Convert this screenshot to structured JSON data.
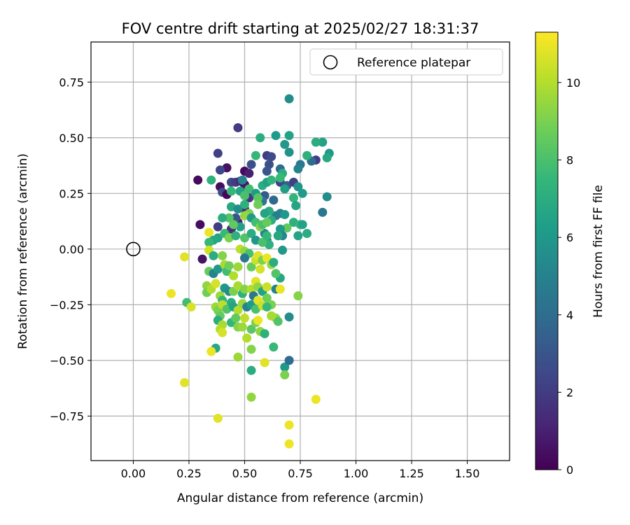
{
  "chart_data": {
    "type": "scatter",
    "title": "FOV centre drift starting at 2025/02/27 18:31:37",
    "xlabel": "Angular distance from reference (arcmin)",
    "ylabel": "Rotation from reference (arcmin)",
    "xlim": [
      -0.19,
      1.69
    ],
    "ylim": [
      -0.95,
      0.93
    ],
    "xticks": [
      0.0,
      0.25,
      0.5,
      0.75,
      1.0,
      1.25,
      1.5
    ],
    "xtick_labels": [
      "0.00",
      "0.25",
      "0.50",
      "0.75",
      "1.00",
      "1.25",
      "1.50"
    ],
    "yticks": [
      -0.75,
      -0.5,
      -0.25,
      0.0,
      0.25,
      0.5,
      0.75
    ],
    "ytick_labels": [
      "−0.75",
      "−0.50",
      "−0.25",
      "0.00",
      "0.25",
      "0.50",
      "0.75"
    ],
    "grid": true,
    "legend": {
      "placement": "top-right",
      "entries": [
        "Reference platepar"
      ]
    },
    "reference_point": {
      "name": "Reference platepar",
      "x": 0.0,
      "y": 0.0
    },
    "colorbar": {
      "label": "Hours from first FF file",
      "colormap": "viridis",
      "min": 0,
      "max": 11.3,
      "ticks": [
        0,
        2,
        4,
        6,
        8,
        10
      ],
      "tick_labels": [
        "0",
        "2",
        "4",
        "6",
        "8",
        "10"
      ]
    },
    "colormap_stops": [
      "#440154",
      "#482878",
      "#3e4989",
      "#31688e",
      "#26828e",
      "#1f9e89",
      "#35b779",
      "#6ece58",
      "#b5de2b",
      "#fde725"
    ],
    "points": [
      {
        "x": 0.47,
        "y": 0.545,
        "h": 2.0
      },
      {
        "x": 0.38,
        "y": 0.43,
        "h": 2.2
      },
      {
        "x": 0.42,
        "y": 0.365,
        "h": 0.5
      },
      {
        "x": 0.39,
        "y": 0.355,
        "h": 2.4
      },
      {
        "x": 0.29,
        "y": 0.31,
        "h": 0.3
      },
      {
        "x": 0.44,
        "y": 0.3,
        "h": 2.5
      },
      {
        "x": 0.46,
        "y": 0.3,
        "h": 2.0
      },
      {
        "x": 0.39,
        "y": 0.28,
        "h": 0.4
      },
      {
        "x": 0.4,
        "y": 0.255,
        "h": 2.6
      },
      {
        "x": 0.42,
        "y": 0.245,
        "h": 0.2
      },
      {
        "x": 0.5,
        "y": 0.35,
        "h": 0.3
      },
      {
        "x": 0.52,
        "y": 0.34,
        "h": 1.0
      },
      {
        "x": 0.53,
        "y": 0.38,
        "h": 2.8
      },
      {
        "x": 0.48,
        "y": 0.305,
        "h": 1.5
      },
      {
        "x": 0.5,
        "y": 0.29,
        "h": 0.6
      },
      {
        "x": 0.3,
        "y": 0.11,
        "h": 0.4
      },
      {
        "x": 0.38,
        "y": 0.1,
        "h": 2.0
      },
      {
        "x": 0.44,
        "y": 0.09,
        "h": 1.5
      },
      {
        "x": 0.47,
        "y": 0.12,
        "h": 1.0
      },
      {
        "x": 0.31,
        "y": -0.045,
        "h": 0.6
      },
      {
        "x": 0.52,
        "y": 0.23,
        "h": 1.8
      },
      {
        "x": 0.5,
        "y": 0.18,
        "h": 1.2
      },
      {
        "x": 0.46,
        "y": 0.14,
        "h": 3.0
      },
      {
        "x": 0.6,
        "y": 0.42,
        "h": 2.0
      },
      {
        "x": 0.62,
        "y": 0.415,
        "h": 2.6
      },
      {
        "x": 0.61,
        "y": 0.38,
        "h": 2.8
      },
      {
        "x": 0.66,
        "y": 0.36,
        "h": 4.0
      },
      {
        "x": 0.6,
        "y": 0.35,
        "h": 3.0
      },
      {
        "x": 0.66,
        "y": 0.3,
        "h": 2.4
      },
      {
        "x": 0.69,
        "y": 0.285,
        "h": 3.5
      },
      {
        "x": 0.72,
        "y": 0.3,
        "h": 2.2
      },
      {
        "x": 0.59,
        "y": 0.24,
        "h": 3.2
      },
      {
        "x": 0.58,
        "y": 0.215,
        "h": 4.5
      },
      {
        "x": 0.63,
        "y": 0.22,
        "h": 3.8
      },
      {
        "x": 0.82,
        "y": 0.4,
        "h": 2.0
      },
      {
        "x": 0.8,
        "y": 0.395,
        "h": 4.0
      },
      {
        "x": 0.75,
        "y": 0.38,
        "h": 4.5
      },
      {
        "x": 0.74,
        "y": 0.36,
        "h": 5.0
      },
      {
        "x": 0.7,
        "y": 0.675,
        "h": 5.5
      },
      {
        "x": 0.7,
        "y": 0.51,
        "h": 6.5
      },
      {
        "x": 0.64,
        "y": 0.51,
        "h": 6.2
      },
      {
        "x": 0.57,
        "y": 0.5,
        "h": 7.0
      },
      {
        "x": 0.68,
        "y": 0.47,
        "h": 6.0
      },
      {
        "x": 0.7,
        "y": 0.435,
        "h": 5.8
      },
      {
        "x": 0.78,
        "y": 0.42,
        "h": 7.2
      },
      {
        "x": 0.85,
        "y": 0.48,
        "h": 6.5
      },
      {
        "x": 0.82,
        "y": 0.48,
        "h": 7.0
      },
      {
        "x": 0.88,
        "y": 0.43,
        "h": 6.0
      },
      {
        "x": 0.87,
        "y": 0.41,
        "h": 6.8
      },
      {
        "x": 0.55,
        "y": 0.42,
        "h": 7.5
      },
      {
        "x": 0.67,
        "y": 0.34,
        "h": 7.0
      },
      {
        "x": 0.66,
        "y": 0.32,
        "h": 7.6
      },
      {
        "x": 0.68,
        "y": 0.27,
        "h": 6.4
      },
      {
        "x": 0.74,
        "y": 0.28,
        "h": 5.8
      },
      {
        "x": 0.76,
        "y": 0.25,
        "h": 6.2
      },
      {
        "x": 0.72,
        "y": 0.23,
        "h": 7.4
      },
      {
        "x": 0.73,
        "y": 0.195,
        "h": 6.6
      },
      {
        "x": 0.87,
        "y": 0.235,
        "h": 5.5
      },
      {
        "x": 0.85,
        "y": 0.165,
        "h": 4.5
      },
      {
        "x": 0.66,
        "y": 0.16,
        "h": 5.0
      },
      {
        "x": 0.68,
        "y": 0.155,
        "h": 6.0
      },
      {
        "x": 0.64,
        "y": 0.15,
        "h": 4.8
      },
      {
        "x": 0.62,
        "y": 0.13,
        "h": 7.0
      },
      {
        "x": 0.72,
        "y": 0.12,
        "h": 7.2
      },
      {
        "x": 0.75,
        "y": 0.11,
        "h": 7.5
      },
      {
        "x": 0.76,
        "y": 0.11,
        "h": 6.5
      },
      {
        "x": 0.69,
        "y": 0.095,
        "h": 8.5
      },
      {
        "x": 0.66,
        "y": 0.09,
        "h": 6.2
      },
      {
        "x": 0.78,
        "y": 0.07,
        "h": 7.0
      },
      {
        "x": 0.74,
        "y": 0.06,
        "h": 6.6
      },
      {
        "x": 0.67,
        "y": 0.06,
        "h": 5.2
      },
      {
        "x": 0.65,
        "y": 0.06,
        "h": 6.8
      },
      {
        "x": 0.59,
        "y": 0.07,
        "h": 5.0
      },
      {
        "x": 0.6,
        "y": 0.04,
        "h": 4.5
      },
      {
        "x": 0.61,
        "y": 0.02,
        "h": 7.2
      },
      {
        "x": 0.67,
        "y": -0.005,
        "h": 6.0
      },
      {
        "x": 0.35,
        "y": 0.31,
        "h": 7.2
      },
      {
        "x": 0.44,
        "y": 0.26,
        "h": 7.5
      },
      {
        "x": 0.48,
        "y": 0.26,
        "h": 6.5
      },
      {
        "x": 0.5,
        "y": 0.24,
        "h": 8.0
      },
      {
        "x": 0.52,
        "y": 0.27,
        "h": 7.8
      },
      {
        "x": 0.55,
        "y": 0.25,
        "h": 6.2
      },
      {
        "x": 0.56,
        "y": 0.23,
        "h": 8.4
      },
      {
        "x": 0.58,
        "y": 0.285,
        "h": 7.0
      },
      {
        "x": 0.6,
        "y": 0.3,
        "h": 6.5
      },
      {
        "x": 0.62,
        "y": 0.31,
        "h": 7.4
      },
      {
        "x": 0.49,
        "y": 0.31,
        "h": 5.0
      },
      {
        "x": 0.44,
        "y": 0.19,
        "h": 6.8
      },
      {
        "x": 0.47,
        "y": 0.18,
        "h": 5.5
      },
      {
        "x": 0.5,
        "y": 0.2,
        "h": 7.2
      },
      {
        "x": 0.52,
        "y": 0.16,
        "h": 9.0
      },
      {
        "x": 0.5,
        "y": 0.15,
        "h": 9.5
      },
      {
        "x": 0.53,
        "y": 0.14,
        "h": 6.0
      },
      {
        "x": 0.55,
        "y": 0.12,
        "h": 7.8
      },
      {
        "x": 0.57,
        "y": 0.1,
        "h": 9.2
      },
      {
        "x": 0.58,
        "y": 0.11,
        "h": 8.0
      },
      {
        "x": 0.6,
        "y": 0.12,
        "h": 8.6
      },
      {
        "x": 0.61,
        "y": 0.17,
        "h": 7.0
      },
      {
        "x": 0.56,
        "y": 0.2,
        "h": 8.8
      },
      {
        "x": 0.59,
        "y": 0.16,
        "h": 6.6
      },
      {
        "x": 0.48,
        "y": 0.1,
        "h": 6.4
      },
      {
        "x": 0.45,
        "y": 0.11,
        "h": 8.5
      },
      {
        "x": 0.43,
        "y": 0.14,
        "h": 8.2
      },
      {
        "x": 0.4,
        "y": 0.14,
        "h": 7.0
      },
      {
        "x": 0.38,
        "y": 0.05,
        "h": 6.6
      },
      {
        "x": 0.41,
        "y": 0.07,
        "h": 7.6
      },
      {
        "x": 0.43,
        "y": 0.05,
        "h": 9.0
      },
      {
        "x": 0.46,
        "y": 0.06,
        "h": 7.2
      },
      {
        "x": 0.5,
        "y": 0.05,
        "h": 8.2
      },
      {
        "x": 0.53,
        "y": 0.07,
        "h": 7.0
      },
      {
        "x": 0.55,
        "y": 0.04,
        "h": 6.0
      },
      {
        "x": 0.58,
        "y": 0.03,
        "h": 8.0
      },
      {
        "x": 0.6,
        "y": 0.06,
        "h": 7.5
      },
      {
        "x": 0.36,
        "y": 0.04,
        "h": 6.8
      },
      {
        "x": 0.34,
        "y": 0.03,
        "h": 7.5
      },
      {
        "x": 0.34,
        "y": 0.075,
        "h": 11.0
      },
      {
        "x": 0.34,
        "y": -0.005,
        "h": 10.5
      },
      {
        "x": 0.36,
        "y": -0.03,
        "h": 7.0
      },
      {
        "x": 0.34,
        "y": -0.1,
        "h": 8.6
      },
      {
        "x": 0.36,
        "y": -0.11,
        "h": 5.0
      },
      {
        "x": 0.38,
        "y": -0.09,
        "h": 6.0
      },
      {
        "x": 0.4,
        "y": -0.03,
        "h": 9.2
      },
      {
        "x": 0.41,
        "y": -0.07,
        "h": 9.8
      },
      {
        "x": 0.42,
        "y": -0.1,
        "h": 7.8
      },
      {
        "x": 0.43,
        "y": -0.075,
        "h": 8.8
      },
      {
        "x": 0.45,
        "y": -0.12,
        "h": 10.0
      },
      {
        "x": 0.47,
        "y": -0.08,
        "h": 9.6
      },
      {
        "x": 0.48,
        "y": 0.0,
        "h": 10.2
      },
      {
        "x": 0.5,
        "y": -0.01,
        "h": 9.4
      },
      {
        "x": 0.52,
        "y": -0.02,
        "h": 8.0
      },
      {
        "x": 0.5,
        "y": -0.04,
        "h": 4.5
      },
      {
        "x": 0.53,
        "y": -0.08,
        "h": 8.6
      },
      {
        "x": 0.55,
        "y": -0.05,
        "h": 10.4
      },
      {
        "x": 0.56,
        "y": -0.03,
        "h": 10.8
      },
      {
        "x": 0.58,
        "y": -0.05,
        "h": 9.0
      },
      {
        "x": 0.57,
        "y": -0.09,
        "h": 10.6
      },
      {
        "x": 0.6,
        "y": -0.04,
        "h": 11.0
      },
      {
        "x": 0.62,
        "y": -0.07,
        "h": 9.6
      },
      {
        "x": 0.63,
        "y": -0.06,
        "h": 7.0
      },
      {
        "x": 0.66,
        "y": -0.13,
        "h": 6.8
      },
      {
        "x": 0.64,
        "y": -0.11,
        "h": 8.2
      },
      {
        "x": 0.33,
        "y": -0.165,
        "h": 9.4
      },
      {
        "x": 0.33,
        "y": -0.195,
        "h": 8.8
      },
      {
        "x": 0.35,
        "y": -0.18,
        "h": 10.0
      },
      {
        "x": 0.37,
        "y": -0.155,
        "h": 10.6
      },
      {
        "x": 0.39,
        "y": -0.21,
        "h": 9.6
      },
      {
        "x": 0.4,
        "y": -0.23,
        "h": 7.5
      },
      {
        "x": 0.41,
        "y": -0.175,
        "h": 6.0
      },
      {
        "x": 0.43,
        "y": -0.19,
        "h": 5.5
      },
      {
        "x": 0.45,
        "y": -0.19,
        "h": 9.0
      },
      {
        "x": 0.47,
        "y": -0.165,
        "h": 9.8
      },
      {
        "x": 0.49,
        "y": -0.2,
        "h": 7.2
      },
      {
        "x": 0.5,
        "y": -0.18,
        "h": 9.2
      },
      {
        "x": 0.53,
        "y": -0.18,
        "h": 10.0
      },
      {
        "x": 0.54,
        "y": -0.21,
        "h": 4.5
      },
      {
        "x": 0.55,
        "y": -0.145,
        "h": 10.8
      },
      {
        "x": 0.56,
        "y": -0.17,
        "h": 9.4
      },
      {
        "x": 0.58,
        "y": -0.19,
        "h": 6.5
      },
      {
        "x": 0.6,
        "y": -0.17,
        "h": 10.4
      },
      {
        "x": 0.6,
        "y": -0.22,
        "h": 8.8
      },
      {
        "x": 0.62,
        "y": -0.25,
        "h": 9.0
      },
      {
        "x": 0.64,
        "y": -0.18,
        "h": 5.0
      },
      {
        "x": 0.66,
        "y": -0.18,
        "h": 11.0
      },
      {
        "x": 0.74,
        "y": -0.21,
        "h": 9.2
      },
      {
        "x": 0.37,
        "y": -0.26,
        "h": 9.6
      },
      {
        "x": 0.38,
        "y": -0.275,
        "h": 9.0
      },
      {
        "x": 0.39,
        "y": -0.3,
        "h": 8.6
      },
      {
        "x": 0.4,
        "y": -0.25,
        "h": 10.2
      },
      {
        "x": 0.42,
        "y": -0.27,
        "h": 8.2
      },
      {
        "x": 0.44,
        "y": -0.24,
        "h": 7.0
      },
      {
        "x": 0.45,
        "y": -0.26,
        "h": 6.6
      },
      {
        "x": 0.47,
        "y": -0.275,
        "h": 10.0
      },
      {
        "x": 0.49,
        "y": -0.245,
        "h": 9.6
      },
      {
        "x": 0.51,
        "y": -0.26,
        "h": 5.0
      },
      {
        "x": 0.53,
        "y": -0.25,
        "h": 6.2
      },
      {
        "x": 0.55,
        "y": -0.27,
        "h": 8.0
      },
      {
        "x": 0.56,
        "y": -0.23,
        "h": 10.8
      },
      {
        "x": 0.58,
        "y": -0.255,
        "h": 10.4
      },
      {
        "x": 0.6,
        "y": -0.26,
        "h": 7.6
      },
      {
        "x": 0.62,
        "y": -0.3,
        "h": 10.6
      },
      {
        "x": 0.64,
        "y": -0.31,
        "h": 9.4
      },
      {
        "x": 0.65,
        "y": -0.325,
        "h": 8.2
      },
      {
        "x": 0.7,
        "y": -0.305,
        "h": 5.5
      },
      {
        "x": 0.38,
        "y": -0.32,
        "h": 7.0
      },
      {
        "x": 0.4,
        "y": -0.34,
        "h": 9.8
      },
      {
        "x": 0.39,
        "y": -0.36,
        "h": 10.0
      },
      {
        "x": 0.4,
        "y": -0.375,
        "h": 10.6
      },
      {
        "x": 0.44,
        "y": -0.33,
        "h": 7.5
      },
      {
        "x": 0.46,
        "y": -0.31,
        "h": 8.5
      },
      {
        "x": 0.47,
        "y": -0.35,
        "h": 9.2
      },
      {
        "x": 0.49,
        "y": -0.35,
        "h": 9.6
      },
      {
        "x": 0.5,
        "y": -0.31,
        "h": 10.2
      },
      {
        "x": 0.51,
        "y": -0.4,
        "h": 10.0
      },
      {
        "x": 0.53,
        "y": -0.36,
        "h": 8.4
      },
      {
        "x": 0.55,
        "y": -0.33,
        "h": 9.0
      },
      {
        "x": 0.56,
        "y": -0.32,
        "h": 11.0
      },
      {
        "x": 0.57,
        "y": -0.37,
        "h": 9.4
      },
      {
        "x": 0.59,
        "y": -0.38,
        "h": 7.2
      },
      {
        "x": 0.62,
        "y": -0.3,
        "h": 9.8
      },
      {
        "x": 0.37,
        "y": -0.445,
        "h": 6.8
      },
      {
        "x": 0.35,
        "y": -0.46,
        "h": 11.0
      },
      {
        "x": 0.47,
        "y": -0.485,
        "h": 9.6
      },
      {
        "x": 0.53,
        "y": -0.45,
        "h": 9.2
      },
      {
        "x": 0.53,
        "y": -0.545,
        "h": 7.0
      },
      {
        "x": 0.59,
        "y": -0.51,
        "h": 10.8
      },
      {
        "x": 0.63,
        "y": -0.44,
        "h": 7.6
      },
      {
        "x": 0.68,
        "y": -0.53,
        "h": 6.0
      },
      {
        "x": 0.7,
        "y": -0.5,
        "h": 4.0
      },
      {
        "x": 0.68,
        "y": -0.565,
        "h": 9.0
      },
      {
        "x": 0.23,
        "y": -0.035,
        "h": 10.8
      },
      {
        "x": 0.17,
        "y": -0.2,
        "h": 11.0
      },
      {
        "x": 0.24,
        "y": -0.24,
        "h": 7.8
      },
      {
        "x": 0.26,
        "y": -0.26,
        "h": 10.6
      },
      {
        "x": 0.23,
        "y": -0.6,
        "h": 10.8
      },
      {
        "x": 0.53,
        "y": -0.665,
        "h": 9.4
      },
      {
        "x": 0.82,
        "y": -0.675,
        "h": 11.0
      },
      {
        "x": 0.38,
        "y": -0.76,
        "h": 10.8
      },
      {
        "x": 0.7,
        "y": -0.79,
        "h": 11.0
      },
      {
        "x": 0.7,
        "y": -0.875,
        "h": 11.0
      }
    ]
  }
}
